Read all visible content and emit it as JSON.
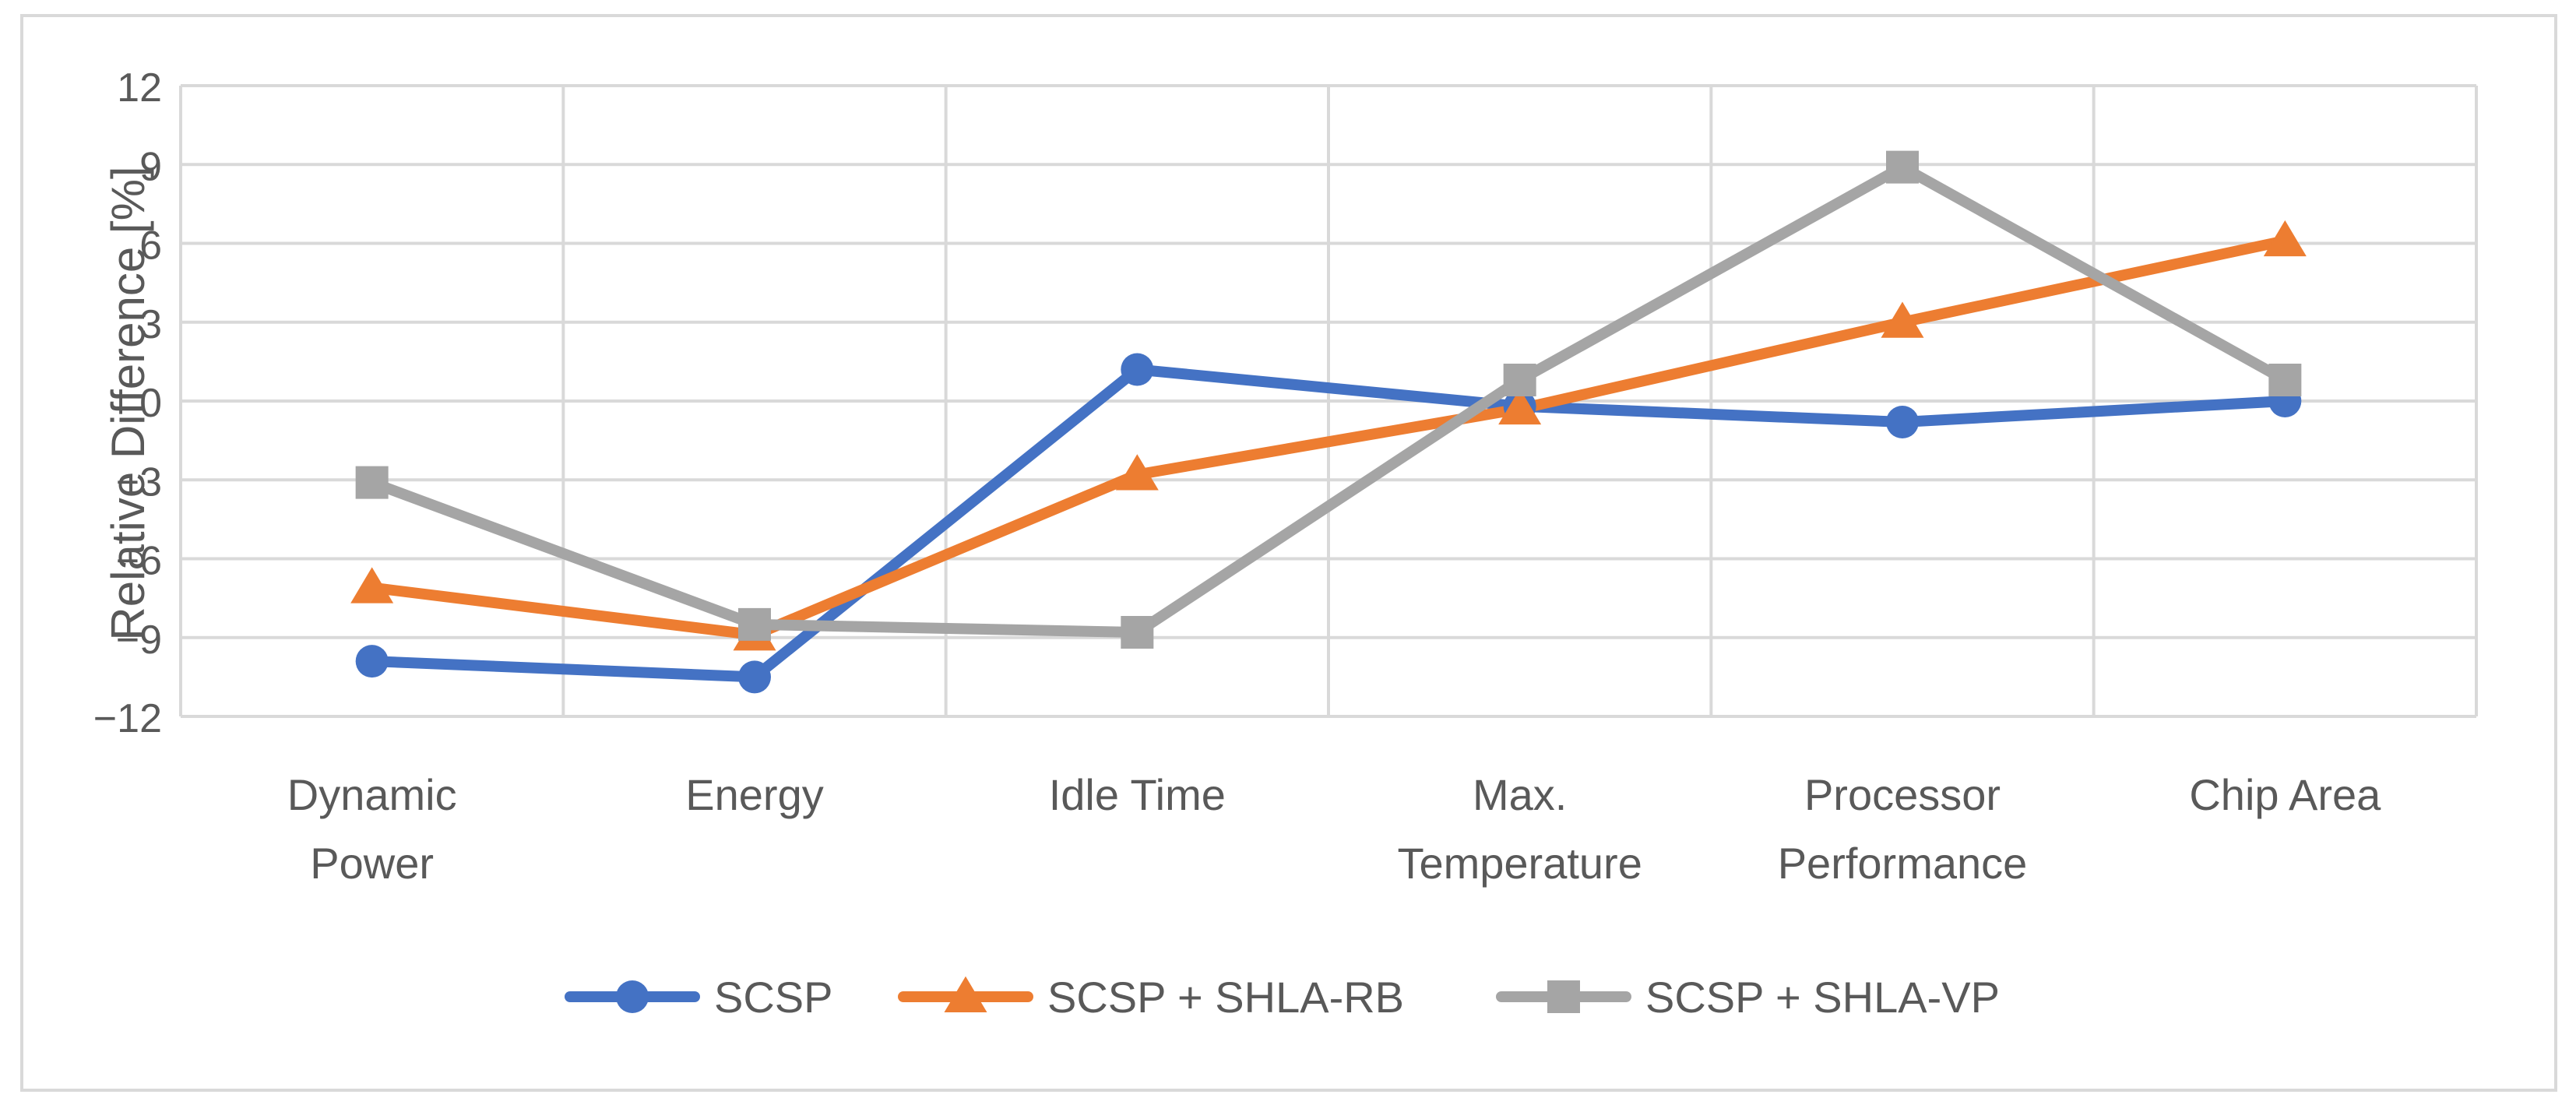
{
  "chart_data": {
    "type": "line",
    "title": "",
    "xlabel": "",
    "ylabel": "Relative Difference [%]",
    "ylim": [
      -12,
      12
    ],
    "yticks": [
      12,
      9,
      6,
      3,
      0,
      -3,
      -6,
      -9,
      -12
    ],
    "grid": true,
    "legend": "bottom",
    "categories": [
      [
        "Dynamic",
        "Power"
      ],
      [
        "Energy"
      ],
      [
        "Idle Time"
      ],
      [
        "Max.",
        "Temperature"
      ],
      [
        "Processor",
        "Performance"
      ],
      [
        "Chip Area"
      ]
    ],
    "series": [
      {
        "name": "SCSP",
        "marker": "circle",
        "color": "#4472C4",
        "values": [
          -9.9,
          -10.5,
          1.2,
          -0.2,
          -0.8,
          0.0
        ]
      },
      {
        "name": "SCSP + SHLA-RB",
        "marker": "triangle",
        "color": "#ED7D31",
        "values": [
          -7.1,
          -8.9,
          -2.8,
          -0.3,
          3.0,
          6.1
        ]
      },
      {
        "name": "SCSP + SHLA-VP",
        "marker": "square",
        "color": "#A5A5A5",
        "values": [
          -3.1,
          -8.5,
          -8.8,
          0.8,
          8.9,
          0.8
        ]
      }
    ]
  }
}
